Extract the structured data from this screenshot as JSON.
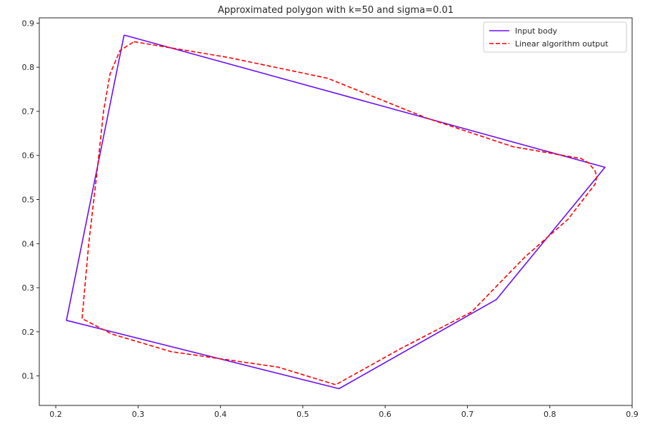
{
  "chart_data": {
    "type": "line",
    "title": "Approximated polygon with k=50 and sigma=0.01",
    "xlabel": "",
    "ylabel": "",
    "xlim": [
      0.18,
      0.9
    ],
    "ylim": [
      0.033,
      0.912
    ],
    "xticks": [
      0.2,
      0.3,
      0.4,
      0.5,
      0.6,
      0.7,
      0.8,
      0.9
    ],
    "xtick_labels": [
      "0.2",
      "0.3",
      "0.4",
      "0.5",
      "0.6",
      "0.7",
      "0.8",
      "0.9"
    ],
    "yticks": [
      0.1,
      0.2,
      0.3,
      0.4,
      0.5,
      0.6,
      0.7,
      0.8,
      0.9
    ],
    "ytick_labels": [
      "0.1",
      "0.2",
      "0.3",
      "0.4",
      "0.5",
      "0.6",
      "0.7",
      "0.8",
      "0.9"
    ],
    "grid": false,
    "legend_position": "top-right",
    "series": [
      {
        "name": "Input body",
        "color": "#6a0dfa",
        "style": "solid",
        "x": [
          0.283,
          0.867,
          0.735,
          0.544,
          0.213,
          0.283
        ],
        "y": [
          0.873,
          0.573,
          0.273,
          0.071,
          0.226,
          0.873
        ]
      },
      {
        "name": "Linear algorithm output",
        "color": "#ff0000",
        "style": "dashed",
        "x": [
          0.295,
          0.41,
          0.53,
          0.65,
          0.755,
          0.838,
          0.847,
          0.855,
          0.857,
          0.855,
          0.822,
          0.77,
          0.705,
          0.62,
          0.54,
          0.47,
          0.34,
          0.268,
          0.232,
          0.24,
          0.25,
          0.258,
          0.266,
          0.278,
          0.295
        ],
        "y": [
          0.858,
          0.822,
          0.775,
          0.685,
          0.62,
          0.593,
          0.583,
          0.565,
          0.55,
          0.535,
          0.455,
          0.37,
          0.245,
          0.163,
          0.08,
          0.12,
          0.155,
          0.195,
          0.23,
          0.4,
          0.56,
          0.7,
          0.785,
          0.838,
          0.858
        ]
      }
    ]
  }
}
